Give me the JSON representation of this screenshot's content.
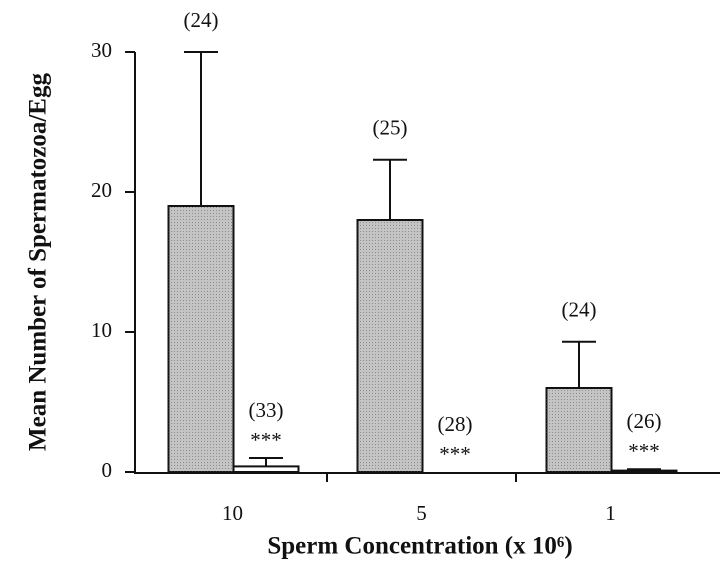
{
  "chart_data": {
    "type": "bar",
    "x_label": "Sperm Concentration (x 10⁶)",
    "y_label": "Mean Number of Spermatozoa/Egg",
    "categories": [
      "10",
      "5",
      "1"
    ],
    "series": [
      {
        "color": "#c4c4c4",
        "values": [
          19,
          18,
          6
        ],
        "errors": [
          11,
          4.3,
          3.3
        ],
        "n_labels": [
          "(24)",
          "(25)",
          "(24)"
        ],
        "sig_labels": [
          null,
          null,
          null
        ]
      },
      {
        "color": "#ffffff",
        "values": [
          0.4,
          0,
          0.1
        ],
        "errors": [
          0.6,
          null,
          0.1
        ],
        "n_labels": [
          "(33)",
          "(28)",
          "(26)"
        ],
        "sig_labels": [
          "***",
          "***",
          "***"
        ]
      }
    ],
    "ylim": [
      0,
      30
    ],
    "yticks": [
      0,
      10,
      20,
      30
    ]
  }
}
